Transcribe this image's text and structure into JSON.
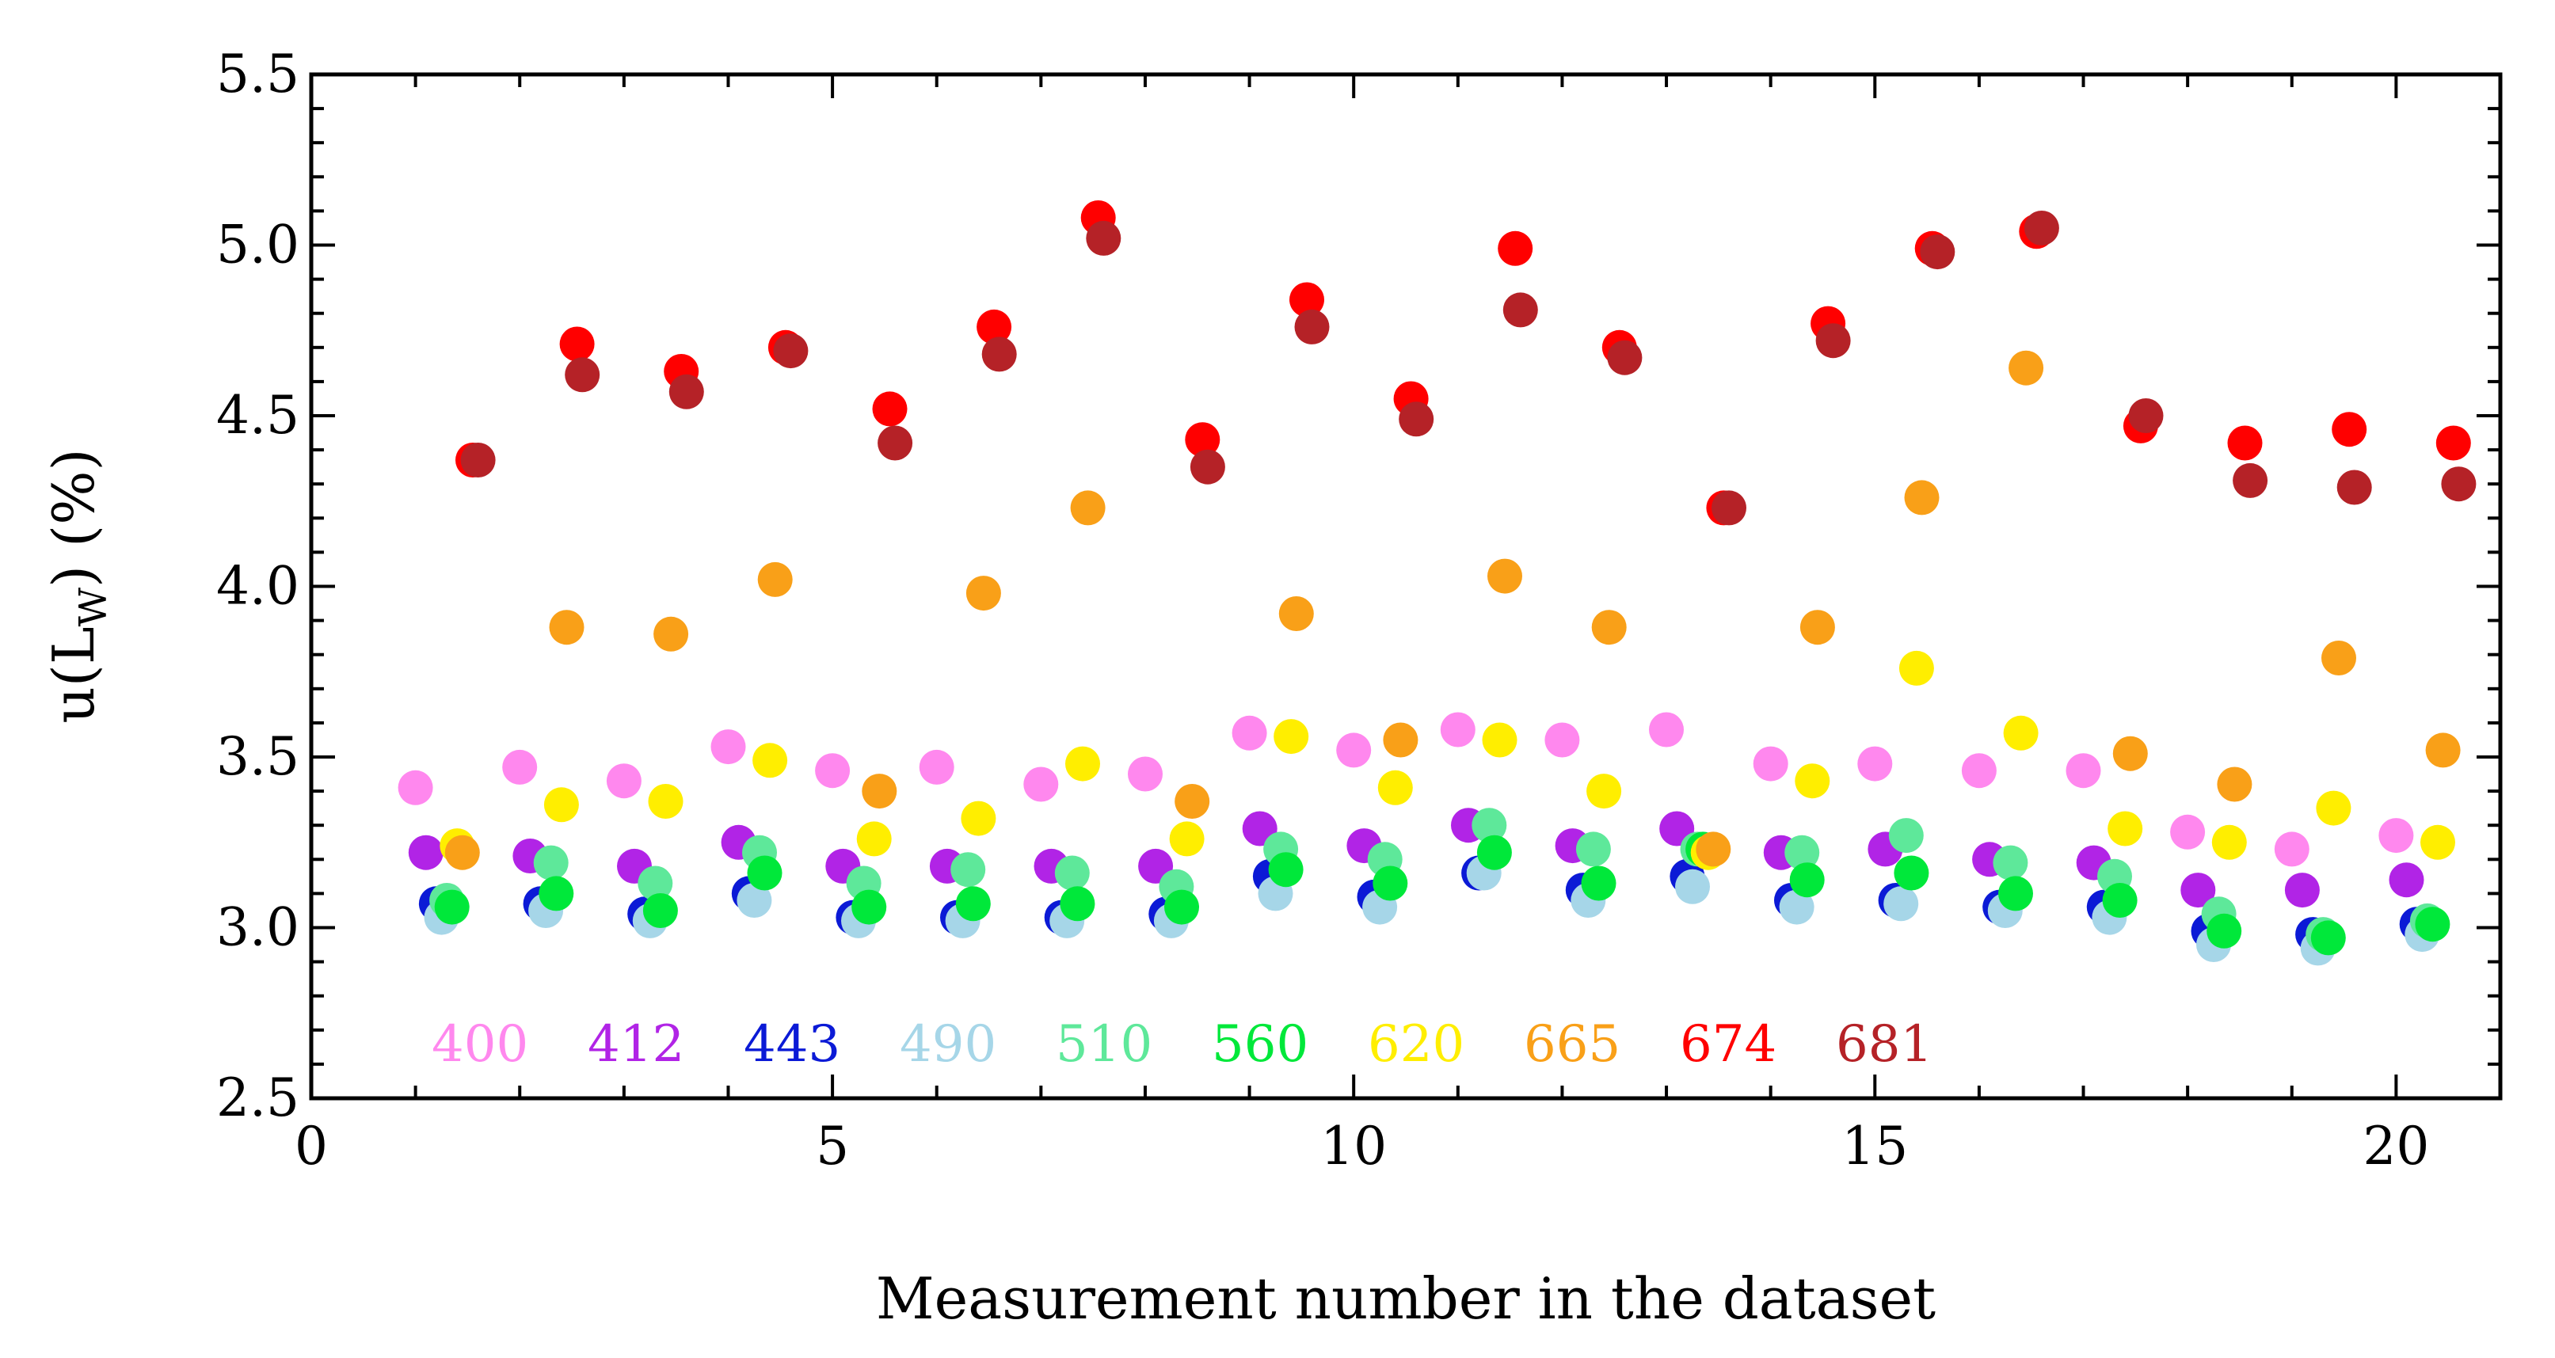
{
  "chart_data": {
    "type": "scatter",
    "title": "",
    "xlabel": "Measurement number in the dataset",
    "ylabel_main": "u(L",
    "ylabel_sub": "W",
    "ylabel_tail": ") (%)",
    "xlim": [
      0,
      21
    ],
    "ylim": [
      2.5,
      5.5
    ],
    "xticks": [
      0,
      5,
      10,
      15,
      20
    ],
    "xtick_labels": [
      "0",
      "5",
      "10",
      "15",
      "20"
    ],
    "yticks": [
      2.5,
      3.0,
      3.5,
      4.0,
      4.5,
      5.0,
      5.5
    ],
    "ytick_labels": [
      "2.5",
      "3.0",
      "3.5",
      "4.0",
      "4.5",
      "5.0",
      "5.5"
    ],
    "legend_position": "bottom-left inside",
    "series": [
      {
        "name": "400",
        "color": "#ff88ee",
        "offset": 0.0,
        "values": [
          3.41,
          3.47,
          3.43,
          3.53,
          3.46,
          3.47,
          3.42,
          3.45,
          3.57,
          3.52,
          3.58,
          3.55,
          3.58,
          3.48,
          3.48,
          3.46,
          3.46,
          3.28,
          3.23,
          3.27
        ]
      },
      {
        "name": "412",
        "color": "#b124e6",
        "offset": 0.1,
        "values": [
          3.22,
          3.21,
          3.18,
          3.25,
          3.18,
          3.18,
          3.18,
          3.18,
          3.29,
          3.24,
          3.3,
          3.24,
          3.29,
          3.22,
          3.23,
          3.2,
          3.19,
          3.11,
          3.11,
          3.14
        ]
      },
      {
        "name": "443",
        "color": "#0b1ad6",
        "offset": 0.2,
        "values": [
          3.07,
          3.07,
          3.04,
          3.1,
          3.03,
          3.03,
          3.03,
          3.04,
          3.15,
          3.09,
          3.16,
          3.11,
          3.15,
          3.08,
          3.08,
          3.06,
          3.06,
          2.99,
          2.98,
          3.01
        ]
      },
      {
        "name": "490",
        "color": "#a6d6e8",
        "offset": 0.25,
        "values": [
          3.03,
          3.05,
          3.02,
          3.08,
          3.02,
          3.02,
          3.02,
          3.02,
          3.1,
          3.06,
          3.16,
          3.08,
          3.12,
          3.06,
          3.07,
          3.05,
          3.03,
          2.95,
          2.94,
          2.98
        ]
      },
      {
        "name": "510",
        "color": "#5ee89a",
        "offset": 0.3,
        "values": [
          3.08,
          3.19,
          3.13,
          3.22,
          3.13,
          3.17,
          3.16,
          3.12,
          3.23,
          3.2,
          3.3,
          3.23,
          3.23,
          3.22,
          3.27,
          3.19,
          3.15,
          3.04,
          2.98,
          3.02
        ]
      },
      {
        "name": "560",
        "color": "#00e83a",
        "offset": 0.35,
        "values": [
          3.06,
          3.1,
          3.05,
          3.16,
          3.06,
          3.07,
          3.07,
          3.06,
          3.17,
          3.13,
          3.22,
          3.13,
          3.23,
          3.14,
          3.16,
          3.1,
          3.08,
          2.99,
          2.97,
          3.01
        ]
      },
      {
        "name": "620",
        "color": "#ffee00",
        "offset": 0.4,
        "values": [
          3.24,
          3.36,
          3.37,
          3.49,
          3.26,
          3.32,
          3.48,
          3.26,
          3.56,
          3.41,
          3.55,
          3.4,
          3.22,
          3.43,
          3.76,
          3.57,
          3.29,
          3.25,
          3.35,
          3.25
        ]
      },
      {
        "name": "665",
        "color": "#f9a018",
        "offset": 0.45,
        "values": [
          3.22,
          3.88,
          3.86,
          4.02,
          3.4,
          3.98,
          4.23,
          3.37,
          3.92,
          3.55,
          4.03,
          3.88,
          3.23,
          3.88,
          4.26,
          4.64,
          3.51,
          3.42,
          3.79,
          3.52
        ]
      },
      {
        "name": "674",
        "color": "#ff0000",
        "offset": 0.55,
        "values": [
          4.37,
          4.71,
          4.63,
          4.7,
          4.52,
          4.76,
          5.08,
          4.43,
          4.84,
          4.55,
          4.99,
          4.7,
          4.23,
          4.77,
          4.99,
          5.04,
          4.47,
          4.42,
          4.46,
          4.42
        ]
      },
      {
        "name": "681",
        "color": "#b52227",
        "offset": 0.6,
        "values": [
          4.37,
          4.62,
          4.57,
          4.69,
          4.42,
          4.68,
          5.02,
          4.35,
          4.76,
          4.49,
          4.81,
          4.67,
          4.23,
          4.72,
          4.98,
          5.05,
          4.5,
          4.31,
          4.29,
          4.3
        ]
      }
    ]
  }
}
